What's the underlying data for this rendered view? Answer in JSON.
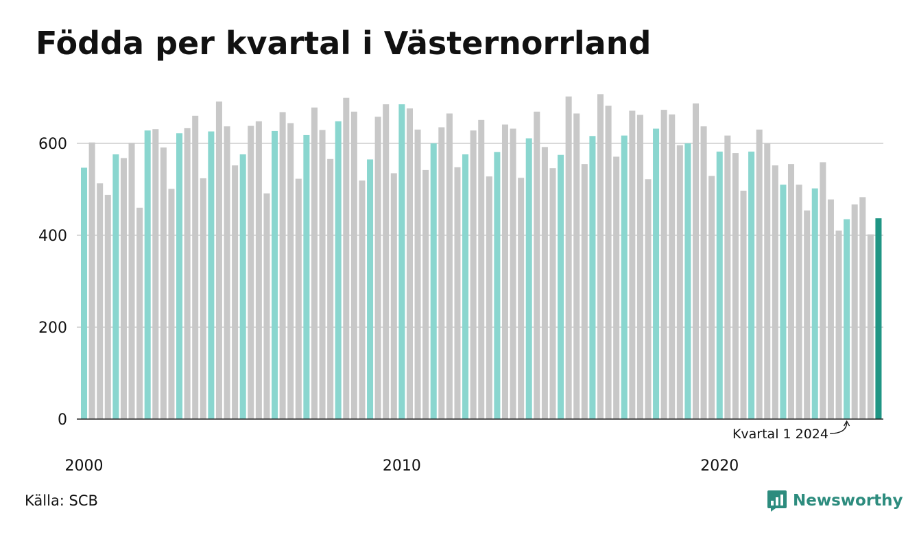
{
  "title": "Födda per kvartal i Västernorrland",
  "source": "Källa: SCB",
  "brand": {
    "name": "Newsworthy",
    "icon": "newsworthy-logo-icon"
  },
  "colors": {
    "q1": "#8ad6cf",
    "other": "#c8c8c8",
    "latest": "#1f9584",
    "brand": "#2d8c7e",
    "grid": "#d9d9d9",
    "axis": "#222222"
  },
  "chart_data": {
    "type": "bar",
    "title": "Födda per kvartal i Västernorrland",
    "xlabel": "",
    "ylabel": "",
    "ylim": [
      0,
      700
    ],
    "yticks": [
      0,
      200,
      400,
      600
    ],
    "xticks": [
      "2000",
      "2010",
      "2020"
    ],
    "grid": true,
    "highlight": "First quarter of each year colored teal; latest quarter dark teal",
    "annotation": "Kvartal 1 2024",
    "series": [
      {
        "year": 2000,
        "values": [
          547,
          602,
          513,
          488
        ]
      },
      {
        "year": 2001,
        "values": [
          576,
          568,
          601,
          460
        ]
      },
      {
        "year": 2002,
        "values": [
          628,
          631,
          591,
          501
        ]
      },
      {
        "year": 2003,
        "values": [
          622,
          633,
          660,
          524
        ]
      },
      {
        "year": 2004,
        "values": [
          626,
          691,
          637,
          552
        ]
      },
      {
        "year": 2005,
        "values": [
          576,
          638,
          648,
          491
        ]
      },
      {
        "year": 2006,
        "values": [
          627,
          668,
          644,
          523
        ]
      },
      {
        "year": 2007,
        "values": [
          618,
          678,
          629,
          566
        ]
      },
      {
        "year": 2008,
        "values": [
          648,
          699,
          669,
          519
        ]
      },
      {
        "year": 2009,
        "values": [
          565,
          658,
          685,
          535
        ]
      },
      {
        "year": 2010,
        "values": [
          685,
          676,
          630,
          542
        ]
      },
      {
        "year": 2011,
        "values": [
          600,
          635,
          665,
          548
        ]
      },
      {
        "year": 2012,
        "values": [
          576,
          628,
          651,
          528
        ]
      },
      {
        "year": 2013,
        "values": [
          581,
          641,
          632,
          525
        ]
      },
      {
        "year": 2014,
        "values": [
          611,
          669,
          592,
          546
        ]
      },
      {
        "year": 2015,
        "values": [
          575,
          702,
          665,
          555
        ]
      },
      {
        "year": 2016,
        "values": [
          616,
          707,
          682,
          571
        ]
      },
      {
        "year": 2017,
        "values": [
          617,
          671,
          662,
          522
        ]
      },
      {
        "year": 2018,
        "values": [
          632,
          673,
          663,
          596
        ]
      },
      {
        "year": 2019,
        "values": [
          600,
          687,
          637,
          529
        ]
      },
      {
        "year": 2020,
        "values": [
          582,
          617,
          579,
          497
        ]
      },
      {
        "year": 2021,
        "values": [
          582,
          630,
          600,
          552
        ]
      },
      {
        "year": 2022,
        "values": [
          510,
          555,
          510,
          454
        ]
      },
      {
        "year": 2023,
        "values": [
          502,
          559,
          478,
          410
        ]
      },
      {
        "year": 2024,
        "values": [
          435,
          467,
          483,
          402
        ]
      },
      {
        "year": 2025,
        "values": [
          437
        ]
      }
    ]
  }
}
